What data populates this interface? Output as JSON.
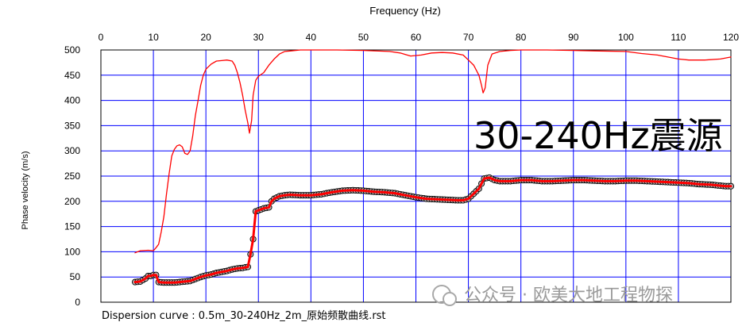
{
  "chart_data": {
    "type": "line",
    "xlabel": "Frequency (Hz)",
    "ylabel": "Phase velocity (m/s)",
    "xlim": [
      0,
      120
    ],
    "ylim": [
      0,
      500
    ],
    "x_ticks": [
      0,
      10,
      20,
      30,
      40,
      50,
      60,
      70,
      80,
      90,
      100,
      110,
      120
    ],
    "y_ticks": [
      0,
      50,
      100,
      150,
      200,
      250,
      300,
      350,
      400,
      450,
      500
    ],
    "x_axis_position": "top",
    "grid": true,
    "grid_color": "#0000ff",
    "annotation": "30-240Hz震源",
    "caption": "Dispersion curve : 0.5m_30-240Hz_2m_原始频散曲线.rst",
    "watermark": "公众号 · 欧美大地工程物探",
    "series": [
      {
        "color": "#ff0000",
        "style": "thin-line",
        "points": [
          [
            6.5,
            98
          ],
          [
            7.5,
            102
          ],
          [
            9,
            103
          ],
          [
            10,
            102
          ],
          [
            10.5,
            108
          ],
          [
            11,
            115
          ],
          [
            11.5,
            140
          ],
          [
            12,
            170
          ],
          [
            12.5,
            215
          ],
          [
            13,
            255
          ],
          [
            13.5,
            290
          ],
          [
            14,
            303
          ],
          [
            14.5,
            310
          ],
          [
            15,
            312
          ],
          [
            15.5,
            308
          ],
          [
            16,
            295
          ],
          [
            16.5,
            293
          ],
          [
            17,
            300
          ],
          [
            17.5,
            330
          ],
          [
            18,
            370
          ],
          [
            18.5,
            400
          ],
          [
            19,
            430
          ],
          [
            19.5,
            450
          ],
          [
            20,
            462
          ],
          [
            21,
            472
          ],
          [
            22,
            478
          ],
          [
            23,
            479
          ],
          [
            24,
            480
          ],
          [
            25,
            478
          ],
          [
            25.5,
            470
          ],
          [
            26,
            455
          ],
          [
            26.5,
            435
          ],
          [
            27,
            410
          ],
          [
            27.5,
            380
          ],
          [
            28,
            355
          ],
          [
            28.3,
            335
          ],
          [
            28.7,
            360
          ],
          [
            29,
            410
          ],
          [
            29.5,
            440
          ],
          [
            30,
            448
          ],
          [
            31,
            455
          ],
          [
            32,
            470
          ],
          [
            33,
            482
          ],
          [
            34,
            492
          ],
          [
            35,
            497
          ],
          [
            36,
            498
          ],
          [
            38,
            500
          ],
          [
            40,
            500
          ],
          [
            45,
            500
          ],
          [
            50,
            499
          ],
          [
            55,
            497
          ],
          [
            57,
            494
          ],
          [
            59,
            488
          ],
          [
            61,
            490
          ],
          [
            63,
            494
          ],
          [
            65,
            495
          ],
          [
            67,
            494
          ],
          [
            69,
            490
          ],
          [
            70,
            480
          ],
          [
            71,
            470
          ],
          [
            72,
            450
          ],
          [
            72.5,
            430
          ],
          [
            72.8,
            415
          ],
          [
            73.2,
            425
          ],
          [
            73.7,
            470
          ],
          [
            74.5,
            492
          ],
          [
            76,
            497
          ],
          [
            78,
            499
          ],
          [
            80,
            500
          ],
          [
            85,
            500
          ],
          [
            90,
            499
          ],
          [
            95,
            498
          ],
          [
            100,
            497
          ],
          [
            103,
            493
          ],
          [
            106,
            490
          ],
          [
            108,
            486
          ],
          [
            110,
            482
          ],
          [
            112,
            480
          ],
          [
            115,
            480
          ],
          [
            118,
            482
          ],
          [
            120,
            486
          ]
        ]
      },
      {
        "color": "#ff0000",
        "marker_color": "#b4b4b4",
        "style": "thick-line-with-markers",
        "points": [
          [
            6.5,
            40
          ],
          [
            7.5,
            41
          ],
          [
            8.5,
            47
          ],
          [
            9,
            52
          ],
          [
            9.5,
            52
          ],
          [
            10,
            54
          ],
          [
            10.5,
            54
          ],
          [
            11,
            40
          ],
          [
            12,
            39
          ],
          [
            13,
            39
          ],
          [
            14,
            39
          ],
          [
            15,
            40
          ],
          [
            16,
            41
          ],
          [
            17,
            42
          ],
          [
            18,
            46
          ],
          [
            19,
            50
          ],
          [
            20,
            53
          ],
          [
            21,
            55
          ],
          [
            22,
            58
          ],
          [
            23,
            60
          ],
          [
            24,
            62
          ],
          [
            25,
            65
          ],
          [
            26,
            67
          ],
          [
            27,
            68
          ],
          [
            28,
            70
          ],
          [
            28.5,
            95
          ],
          [
            29,
            125
          ],
          [
            29.5,
            180
          ],
          [
            30,
            182
          ],
          [
            31,
            186
          ],
          [
            32,
            188
          ],
          [
            32.5,
            200
          ],
          [
            33,
            205
          ],
          [
            34,
            210
          ],
          [
            35,
            212
          ],
          [
            36,
            213
          ],
          [
            38,
            212
          ],
          [
            40,
            212
          ],
          [
            42,
            214
          ],
          [
            44,
            218
          ],
          [
            46,
            221
          ],
          [
            48,
            222
          ],
          [
            50,
            221
          ],
          [
            52,
            219
          ],
          [
            54,
            218
          ],
          [
            56,
            216
          ],
          [
            58,
            212
          ],
          [
            60,
            208
          ],
          [
            62,
            205
          ],
          [
            64,
            204
          ],
          [
            66,
            203
          ],
          [
            68,
            202
          ],
          [
            69,
            202
          ],
          [
            70,
            205
          ],
          [
            71,
            215
          ],
          [
            72,
            225
          ],
          [
            72.5,
            235
          ],
          [
            73,
            245
          ],
          [
            74,
            247
          ],
          [
            75,
            242
          ],
          [
            76,
            240
          ],
          [
            78,
            240
          ],
          [
            80,
            242
          ],
          [
            82,
            242
          ],
          [
            84,
            240
          ],
          [
            86,
            240
          ],
          [
            88,
            241
          ],
          [
            90,
            242
          ],
          [
            92,
            242
          ],
          [
            94,
            241
          ],
          [
            96,
            240
          ],
          [
            98,
            240
          ],
          [
            100,
            241
          ],
          [
            102,
            241
          ],
          [
            104,
            240
          ],
          [
            106,
            239
          ],
          [
            108,
            238
          ],
          [
            110,
            237
          ],
          [
            112,
            236
          ],
          [
            114,
            234
          ],
          [
            116,
            233
          ],
          [
            118,
            231
          ],
          [
            119,
            230
          ],
          [
            120,
            230
          ]
        ]
      }
    ]
  }
}
